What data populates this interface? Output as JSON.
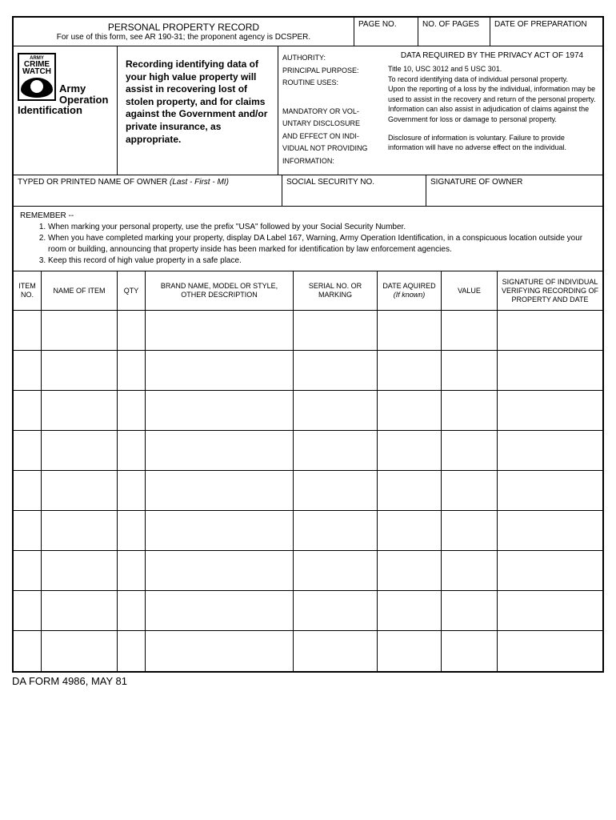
{
  "header": {
    "title": "PERSONAL PROPERTY RECORD",
    "subtitle": "For use of this form, see AR 190-31; the proponent agency is DCSPER.",
    "page_no_label": "PAGE NO.",
    "no_of_pages_label": "NO. OF PAGES",
    "date_prep_label": "DATE OF PREPARATION"
  },
  "logo": {
    "army": "ARMY",
    "crime": "CRIME",
    "watch": "WATCH",
    "line1": "Army",
    "line2": "Operation",
    "line3": "Identification"
  },
  "statement": "Recording identifying data of your high value property will assist in recovering lost of stolen property, and for claims against the Government and/or private insurance, as appropriate.",
  "privacy_labels": {
    "l1": "AUTHORITY:",
    "l2": "PRINCIPAL PURPOSE:",
    "l3": "ROUTINE USES:",
    "l4": "MANDATORY OR VOL-",
    "l5": "UNTARY DISCLOSURE",
    "l6": "AND EFFECT ON INDI-",
    "l7": "VIDUAL NOT PROVIDING",
    "l8": "INFORMATION:"
  },
  "privacy": {
    "heading": "DATA REQUIRED BY THE PRIVACY ACT OF 1974",
    "authority": "Title 10, USC 3012 and 5 USC 301.",
    "purpose": "To record identifying data of individual personal property.",
    "routine": "Upon the reporting of a loss by the individual, information may be used to assist in the recovery and return of the personal property. Information can also assist in adjudication of claims against the Government for loss or damage to personal property.",
    "disclosure": "Disclosure of information is voluntary. Failure to provide information will have no adverse effect on the individual."
  },
  "owner": {
    "name_label": "TYPED OR PRINTED NAME OF OWNER",
    "name_italic": "(Last - First - MI)",
    "ssn_label": "SOCIAL SECURITY NO.",
    "sig_label": "SIGNATURE OF OWNER"
  },
  "remember": {
    "title": "REMEMBER --",
    "item1": "When marking your personal property, use the prefix \"USA\" followed by your Social Security Number.",
    "item2": "When you have completed marking your property, display DA Label 167, Warning, Army Operation Identification, in a conspicuous location outside your room or building, announcing that property inside has been marked for identification by law enforcement agencies.",
    "item3": "Keep this record of high value property in a safe place."
  },
  "table": {
    "col_item": "ITEM NO.",
    "col_name": "NAME OF ITEM",
    "col_qty": "QTY",
    "col_brand": "BRAND NAME, MODEL OR STYLE, OTHER DESCRIPTION",
    "col_serial": "SERIAL NO. OR MARKING",
    "col_date": "DATE AQUIRED",
    "col_date_italic": "(If known)",
    "col_value": "VALUE",
    "col_sig": "SIGNATURE OF INDIVIDUAL VERIFYING RECORDING OF PROPERTY AND DATE",
    "row_count": 9
  },
  "footer": "DA FORM 4986, MAY 81"
}
